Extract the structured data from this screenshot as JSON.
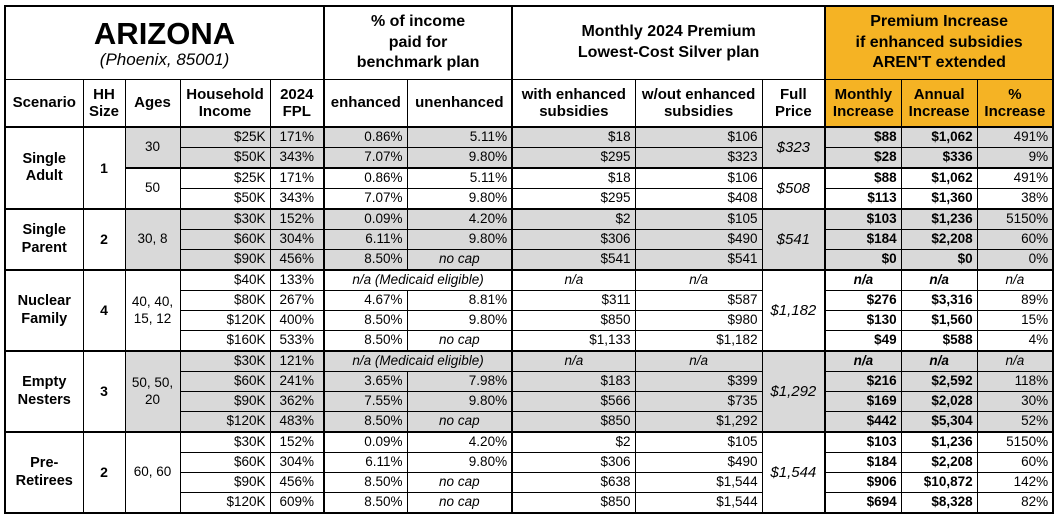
{
  "title": {
    "state": "ARIZONA",
    "location": "(Phoenix, 85001)"
  },
  "colors": {
    "highlight_orange": "#F5B324",
    "band_gray": "#D9D9D9",
    "border_black": "#000000"
  },
  "header_groups": {
    "benchmark": "% of income\npaid for\nbenchmark plan",
    "premium": "Monthly 2024 Premium\nLowest-Cost Silver plan",
    "increase": "Premium Increase\nif enhanced subsidies\nAREN'T extended"
  },
  "columns": [
    "Scenario",
    "HH\nSize",
    "Ages",
    "Household\nIncome",
    "2024\nFPL",
    "enhanced",
    "unenhanced",
    "with enhanced\nsubsidies",
    "w/out enhanced\nsubsidies",
    "Full\nPrice",
    "Monthly\nIncrease",
    "Annual\nIncrease",
    "%\nIncrease"
  ],
  "groups": [
    {
      "scenario": "Single\nAdult",
      "hh_size": "1",
      "age_groups": [
        {
          "ages": "30",
          "shade": "gray",
          "full_price": "$323",
          "rows": [
            {
              "income": "$25K",
              "fpl": "171%",
              "enhanced": "0.86%",
              "unenhanced": "5.11%",
              "with_sub": "$18",
              "wout_sub": "$106",
              "monthly": "$88",
              "annual": "$1,062",
              "pct": "491%"
            },
            {
              "income": "$50K",
              "fpl": "343%",
              "enhanced": "7.07%",
              "unenhanced": "9.80%",
              "with_sub": "$295",
              "wout_sub": "$323",
              "monthly": "$28",
              "annual": "$336",
              "pct": "9%"
            }
          ]
        },
        {
          "ages": "50",
          "shade": "white",
          "full_price": "$508",
          "rows": [
            {
              "income": "$25K",
              "fpl": "171%",
              "enhanced": "0.86%",
              "unenhanced": "5.11%",
              "with_sub": "$18",
              "wout_sub": "$106",
              "monthly": "$88",
              "annual": "$1,062",
              "pct": "491%"
            },
            {
              "income": "$50K",
              "fpl": "343%",
              "enhanced": "7.07%",
              "unenhanced": "9.80%",
              "with_sub": "$295",
              "wout_sub": "$408",
              "monthly": "$113",
              "annual": "$1,360",
              "pct": "38%"
            }
          ]
        }
      ]
    },
    {
      "scenario": "Single\nParent",
      "hh_size": "2",
      "age_groups": [
        {
          "ages": "30, 8",
          "shade": "gray",
          "full_price": "$541",
          "rows": [
            {
              "income": "$30K",
              "fpl": "152%",
              "enhanced": "0.09%",
              "unenhanced": "4.20%",
              "with_sub": "$2",
              "wout_sub": "$105",
              "monthly": "$103",
              "annual": "$1,236",
              "pct": "5150%"
            },
            {
              "income": "$60K",
              "fpl": "304%",
              "enhanced": "6.11%",
              "unenhanced": "9.80%",
              "with_sub": "$306",
              "wout_sub": "$490",
              "monthly": "$184",
              "annual": "$2,208",
              "pct": "60%"
            },
            {
              "income": "$90K",
              "fpl": "456%",
              "enhanced": "8.50%",
              "unenhanced": "no cap",
              "with_sub": "$541",
              "wout_sub": "$541",
              "monthly": "$0",
              "annual": "$0",
              "pct": "0%"
            }
          ]
        }
      ]
    },
    {
      "scenario": "Nuclear\nFamily",
      "hh_size": "4",
      "age_groups": [
        {
          "ages": "40, 40,\n15, 12",
          "shade": "white",
          "full_price": "$1,182",
          "rows": [
            {
              "income": "$40K",
              "fpl": "133%",
              "medicaid": "n/a (Medicaid eligible)",
              "with_sub": "n/a",
              "wout_sub": "n/a",
              "monthly": "n/a",
              "annual": "n/a",
              "pct": "n/a"
            },
            {
              "income": "$80K",
              "fpl": "267%",
              "enhanced": "4.67%",
              "unenhanced": "8.81%",
              "with_sub": "$311",
              "wout_sub": "$587",
              "monthly": "$276",
              "annual": "$3,316",
              "pct": "89%"
            },
            {
              "income": "$120K",
              "fpl": "400%",
              "enhanced": "8.50%",
              "unenhanced": "9.80%",
              "with_sub": "$850",
              "wout_sub": "$980",
              "monthly": "$130",
              "annual": "$1,560",
              "pct": "15%"
            },
            {
              "income": "$160K",
              "fpl": "533%",
              "enhanced": "8.50%",
              "unenhanced": "no cap",
              "with_sub": "$1,133",
              "wout_sub": "$1,182",
              "monthly": "$49",
              "annual": "$588",
              "pct": "4%"
            }
          ]
        }
      ]
    },
    {
      "scenario": "Empty\nNesters",
      "hh_size": "3",
      "age_groups": [
        {
          "ages": "50, 50,\n20",
          "shade": "gray",
          "full_price": "$1,292",
          "rows": [
            {
              "income": "$30K",
              "fpl": "121%",
              "medicaid": "n/a (Medicaid eligible)",
              "with_sub": "n/a",
              "wout_sub": "n/a",
              "monthly": "n/a",
              "annual": "n/a",
              "pct": "n/a"
            },
            {
              "income": "$60K",
              "fpl": "241%",
              "enhanced": "3.65%",
              "unenhanced": "7.98%",
              "with_sub": "$183",
              "wout_sub": "$399",
              "monthly": "$216",
              "annual": "$2,592",
              "pct": "118%"
            },
            {
              "income": "$90K",
              "fpl": "362%",
              "enhanced": "7.55%",
              "unenhanced": "9.80%",
              "with_sub": "$566",
              "wout_sub": "$735",
              "monthly": "$169",
              "annual": "$2,028",
              "pct": "30%"
            },
            {
              "income": "$120K",
              "fpl": "483%",
              "enhanced": "8.50%",
              "unenhanced": "no cap",
              "with_sub": "$850",
              "wout_sub": "$1,292",
              "monthly": "$442",
              "annual": "$5,304",
              "pct": "52%"
            }
          ]
        }
      ]
    },
    {
      "scenario": "Pre-\nRetirees",
      "hh_size": "2",
      "age_groups": [
        {
          "ages": "60, 60",
          "shade": "white",
          "full_price": "$1,544",
          "rows": [
            {
              "income": "$30K",
              "fpl": "152%",
              "enhanced": "0.09%",
              "unenhanced": "4.20%",
              "with_sub": "$2",
              "wout_sub": "$105",
              "monthly": "$103",
              "annual": "$1,236",
              "pct": "5150%"
            },
            {
              "income": "$60K",
              "fpl": "304%",
              "enhanced": "6.11%",
              "unenhanced": "9.80%",
              "with_sub": "$306",
              "wout_sub": "$490",
              "monthly": "$184",
              "annual": "$2,208",
              "pct": "60%"
            },
            {
              "income": "$90K",
              "fpl": "456%",
              "enhanced": "8.50%",
              "unenhanced": "no cap",
              "with_sub": "$638",
              "wout_sub": "$1,544",
              "monthly": "$906",
              "annual": "$10,872",
              "pct": "142%"
            },
            {
              "income": "$120K",
              "fpl": "609%",
              "enhanced": "8.50%",
              "unenhanced": "no cap",
              "with_sub": "$850",
              "wout_sub": "$1,544",
              "monthly": "$694",
              "annual": "$8,328",
              "pct": "82%"
            }
          ]
        }
      ]
    }
  ]
}
